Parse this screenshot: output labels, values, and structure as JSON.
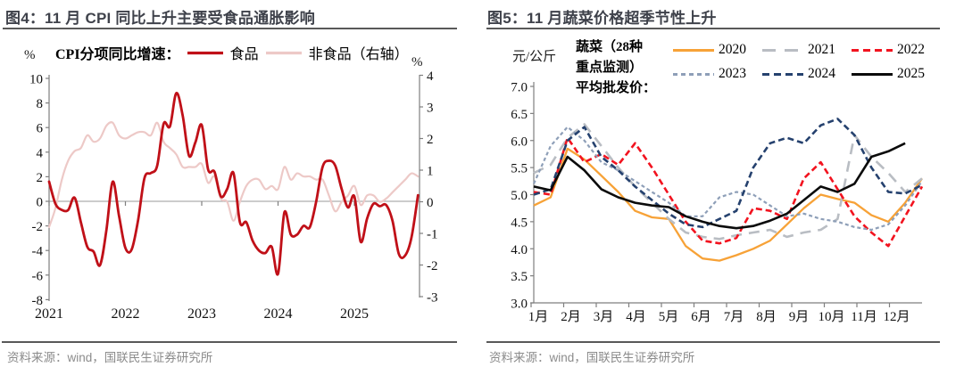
{
  "chart_data": [
    {
      "type": "line",
      "figure_label": "图4",
      "title": "图4：11 月 CPI 同比上升主要受食品通胀影响",
      "legend_title": "CPI分项同比增速：",
      "left_axis": {
        "unit": "%",
        "min": -8,
        "max": 10,
        "step": 2
      },
      "right_axis": {
        "unit": "%",
        "min": -3,
        "max": 4,
        "step": 1
      },
      "x_axis": {
        "tick_labels": [
          "2021",
          "2022",
          "2023",
          "2024",
          "2025"
        ],
        "start": "2021-01",
        "end": "2025-11",
        "freq": "monthly"
      },
      "grid": false,
      "legend_position": "top",
      "series": [
        {
          "name": "非食品（右轴）",
          "axis": "right",
          "color": "#edc9c7",
          "style": "solid",
          "width": 2.2,
          "values": [
            -0.8,
            -0.2,
            0.7,
            1.3,
            1.6,
            1.7,
            2.1,
            1.9,
            2.0,
            2.4,
            2.5,
            2.1,
            2.0,
            2.1,
            2.2,
            2.2,
            2.1,
            2.5,
            1.9,
            1.7,
            1.5,
            1.1,
            1.1,
            1.1,
            1.2,
            0.6,
            0.8,
            0.1,
            0.0,
            -0.6,
            0.0,
            0.5,
            0.7,
            0.7,
            0.4,
            0.5,
            0.4,
            1.1,
            0.7,
            0.9,
            0.8,
            0.8,
            0.7,
            0.7,
            0.2,
            -0.3,
            0.0,
            0.2,
            0.5,
            -0.1,
            0.2,
            0.2,
            0.0,
            0.1,
            0.3,
            0.5,
            0.7,
            0.9,
            0.8
          ]
        },
        {
          "name": "食品",
          "axis": "left",
          "color": "#c01018",
          "style": "solid",
          "width": 2.8,
          "values": [
            1.6,
            -0.2,
            -0.7,
            -0.7,
            0.3,
            -1.7,
            -3.7,
            -4.1,
            -5.2,
            -2.4,
            1.6,
            -1.2,
            -3.8,
            -3.9,
            -1.5,
            1.9,
            2.3,
            2.9,
            6.3,
            6.1,
            8.8,
            7.0,
            3.7,
            4.8,
            6.2,
            2.6,
            2.4,
            0.4,
            1.0,
            2.3,
            -1.7,
            -1.7,
            -3.2,
            -4.0,
            -4.2,
            -3.7,
            -5.9,
            -0.9,
            -2.7,
            -2.7,
            -2.0,
            -2.1,
            0.0,
            2.8,
            3.3,
            2.9,
            1.0,
            -0.5,
            0.4,
            -3.3,
            -1.4,
            -0.2,
            -0.4,
            -0.3,
            -1.6,
            -4.3,
            -4.4,
            -2.9,
            0.5
          ]
        }
      ],
      "source": "资料来源：wind，国联民生证券研究所"
    },
    {
      "type": "line",
      "figure_label": "图5",
      "title": "图5：11 月蔬菜价格超季节性上升",
      "unit": "元/公斤",
      "legend_title_lines": [
        "蔬菜（28种",
        "重点监测）",
        "平均批发价："
      ],
      "y_axis": {
        "min": 3.0,
        "max": 7.0,
        "step": 0.5
      },
      "x_axis": {
        "tick_labels": [
          "1月",
          "2月",
          "3月",
          "4月",
          "5月",
          "6月",
          "7月",
          "8月",
          "9月",
          "10月",
          "11月",
          "12月"
        ],
        "points_per_month": 2
      },
      "grid": false,
      "legend_position": "top",
      "series": [
        {
          "name": "2020",
          "color": "#f7a237",
          "style": "solid",
          "width": 2.3,
          "values": [
            4.8,
            4.95,
            5.85,
            5.65,
            5.35,
            5.05,
            4.7,
            4.58,
            4.55,
            4.05,
            3.82,
            3.78,
            3.88,
            4.0,
            4.15,
            4.45,
            4.75,
            5.0,
            4.92,
            4.85,
            4.62,
            4.5,
            4.85,
            5.3
          ]
        },
        {
          "name": "2021",
          "color": "#b9bdc3",
          "style": "dash-long",
          "width": 2.6,
          "values": [
            5.4,
            5.55,
            6.05,
            6.3,
            5.9,
            5.5,
            5.15,
            4.85,
            4.55,
            4.3,
            4.22,
            4.18,
            4.25,
            4.3,
            4.35,
            4.22,
            4.3,
            4.35,
            4.55,
            6.1,
            5.7,
            5.4,
            5.05,
            5.3
          ]
        },
        {
          "name": "2022",
          "color": "#f2131f",
          "style": "dash",
          "width": 2.6,
          "values": [
            5.05,
            5.0,
            6.05,
            5.6,
            5.75,
            5.55,
            5.95,
            5.5,
            5.0,
            4.5,
            4.15,
            4.1,
            4.2,
            4.75,
            4.7,
            4.55,
            5.3,
            5.6,
            5.1,
            4.6,
            4.3,
            4.05,
            4.6,
            5.15
          ]
        },
        {
          "name": "2023",
          "color": "#8e9fb8",
          "style": "dash-short",
          "width": 2.2,
          "values": [
            5.2,
            5.9,
            6.25,
            6.0,
            5.6,
            5.45,
            5.25,
            5.05,
            4.85,
            4.6,
            4.6,
            4.95,
            5.05,
            5.0,
            4.8,
            4.6,
            4.65,
            4.55,
            4.5,
            4.4,
            4.35,
            4.45,
            4.8,
            5.25
          ]
        },
        {
          "name": "2024",
          "color": "#25416e",
          "style": "dash",
          "width": 2.6,
          "values": [
            5.0,
            5.1,
            6.0,
            6.25,
            5.7,
            5.45,
            5.15,
            4.9,
            4.65,
            4.45,
            4.4,
            4.55,
            4.7,
            5.5,
            5.95,
            6.05,
            5.95,
            6.28,
            6.4,
            6.1,
            5.5,
            5.05,
            5.02,
            5.18
          ]
        },
        {
          "name": "2025",
          "color": "#0b0b0b",
          "style": "solid",
          "width": 2.6,
          "values": [
            5.15,
            5.08,
            5.7,
            5.45,
            5.1,
            4.95,
            4.85,
            4.8,
            4.77,
            4.6,
            4.5,
            4.42,
            4.38,
            4.42,
            4.52,
            4.65,
            4.9,
            5.15,
            5.05,
            5.2,
            5.7,
            5.8,
            5.95
          ]
        }
      ],
      "source": "资料来源：wind，国联民生证券研究所"
    }
  ]
}
